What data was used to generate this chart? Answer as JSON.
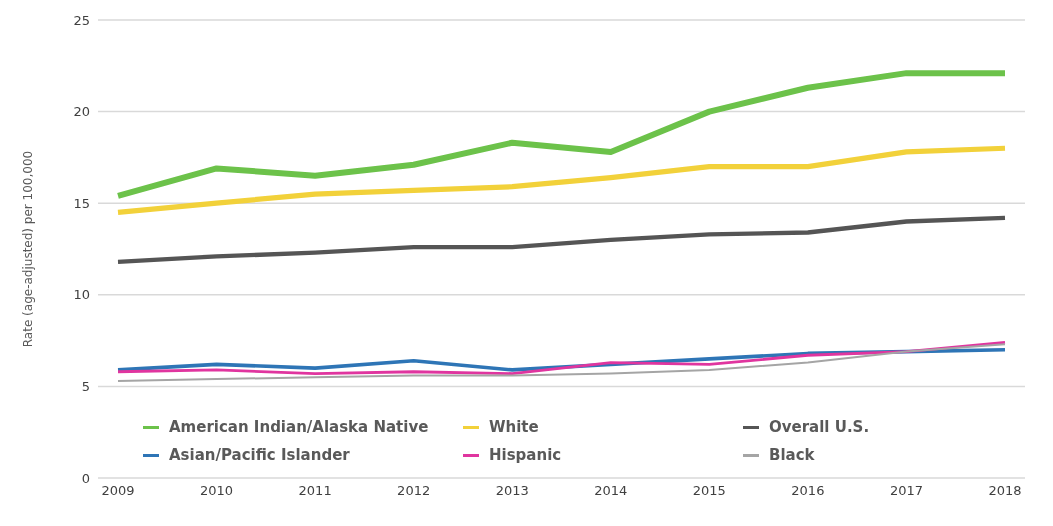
{
  "chart_data": {
    "type": "line",
    "ylabel": "Rate (age-adjusted) per 100,000",
    "categories": [
      "2009",
      "2010",
      "2011",
      "2012",
      "2013",
      "2014",
      "2015",
      "2016",
      "2017",
      "2018"
    ],
    "series": [
      {
        "name": "American Indian/Alaska Native",
        "color": "#6cc24a",
        "values": [
          15.4,
          16.9,
          16.5,
          17.1,
          18.3,
          17.8,
          20.0,
          21.3,
          22.1,
          22.1
        ]
      },
      {
        "name": "White",
        "color": "#f2d13a",
        "values": [
          14.5,
          15.0,
          15.5,
          15.7,
          15.9,
          16.4,
          17.0,
          17.0,
          17.8,
          18.0
        ]
      },
      {
        "name": "Overall U.S.",
        "color": "#555555",
        "values": [
          11.8,
          12.1,
          12.3,
          12.6,
          12.6,
          13.0,
          13.3,
          13.4,
          14.0,
          14.2
        ]
      },
      {
        "name": "Asian/Pacific Islander",
        "color": "#2e75b6",
        "values": [
          5.9,
          6.2,
          6.0,
          6.4,
          5.9,
          6.2,
          6.5,
          6.8,
          6.9,
          7.0
        ]
      },
      {
        "name": "Hispanic",
        "color": "#e0359f",
        "values": [
          5.8,
          5.9,
          5.7,
          5.8,
          5.7,
          6.3,
          6.2,
          6.7,
          6.9,
          7.4
        ]
      },
      {
        "name": "Black",
        "color": "#a5a5a5",
        "values": [
          5.3,
          5.4,
          5.5,
          5.6,
          5.6,
          5.7,
          5.9,
          6.3,
          6.9,
          7.3
        ]
      }
    ],
    "ylim": [
      0,
      25
    ],
    "yticks": [
      0,
      5,
      10,
      15,
      20,
      25
    ],
    "grid": "y",
    "legend": "bottom left",
    "marker": "none",
    "line_style": "solid"
  }
}
